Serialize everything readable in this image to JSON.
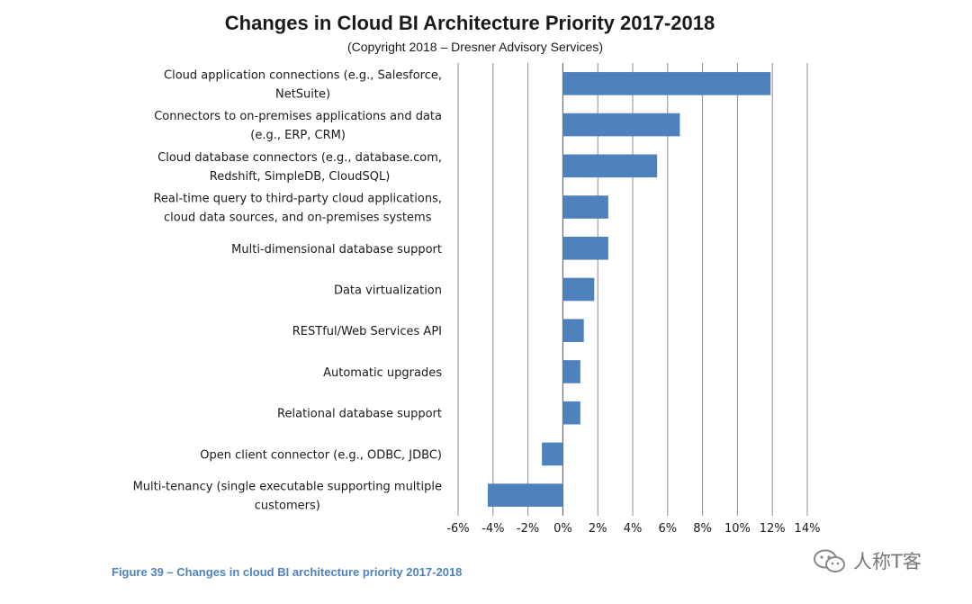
{
  "chart_data": {
    "type": "bar",
    "orientation": "horizontal",
    "title": "Changes in Cloud BI Architecture Priority 2017-2018",
    "subtitle": "(Copyright 2018 – Dresner Advisory Services)",
    "categories": [
      [
        "Cloud application connections (e.g., Salesforce,",
        "NetSuite)"
      ],
      [
        "Connectors to on-premises applications and data",
        "(e.g., ERP, CRM)"
      ],
      [
        "Cloud database connectors (e.g., database.com,",
        "Redshift, SimpleDB, CloudSQL)"
      ],
      [
        "Real-time query to third-party cloud applications,",
        "cloud data sources, and on-premises systems"
      ],
      [
        "Multi-dimensional database support"
      ],
      [
        "Data virtualization"
      ],
      [
        "RESTful/Web Services API"
      ],
      [
        "Automatic upgrades"
      ],
      [
        "Relational database support"
      ],
      [
        "Open client connector (e.g., ODBC, JDBC)"
      ],
      [
        "Multi-tenancy (single executable supporting multiple",
        "customers)"
      ]
    ],
    "values": [
      11.9,
      6.7,
      5.4,
      2.6,
      2.6,
      1.8,
      1.2,
      1.0,
      1.0,
      -1.2,
      -4.3
    ],
    "unit": "%",
    "xlim": [
      -6,
      14
    ],
    "xticks": [
      -6,
      -4,
      -2,
      0,
      2,
      4,
      6,
      8,
      10,
      12,
      14
    ],
    "xtick_labels": [
      "-6%",
      "-4%",
      "-2%",
      "0%",
      "2%",
      "4%",
      "6%",
      "8%",
      "10%",
      "12%",
      "14%"
    ],
    "grid": "vertical",
    "bar_color": "#4f81bd"
  },
  "caption": "Figure 39 – Changes in cloud BI architecture priority 2017-2018",
  "watermark": "人称T客"
}
